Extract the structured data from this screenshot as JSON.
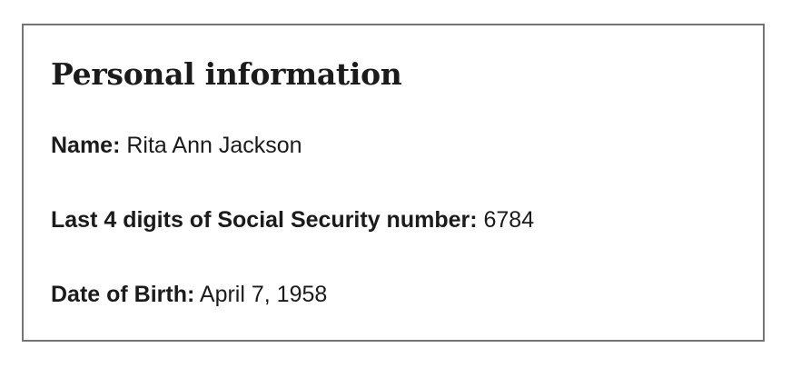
{
  "personal_info": {
    "title": "Personal information",
    "fields": [
      {
        "label": "Name:",
        "value": "Rita Ann Jackson"
      },
      {
        "label": "Last 4 digits of Social Security number:",
        "value": "6784"
      },
      {
        "label": "Date of Birth:",
        "value": "April 7, 1958"
      }
    ]
  }
}
